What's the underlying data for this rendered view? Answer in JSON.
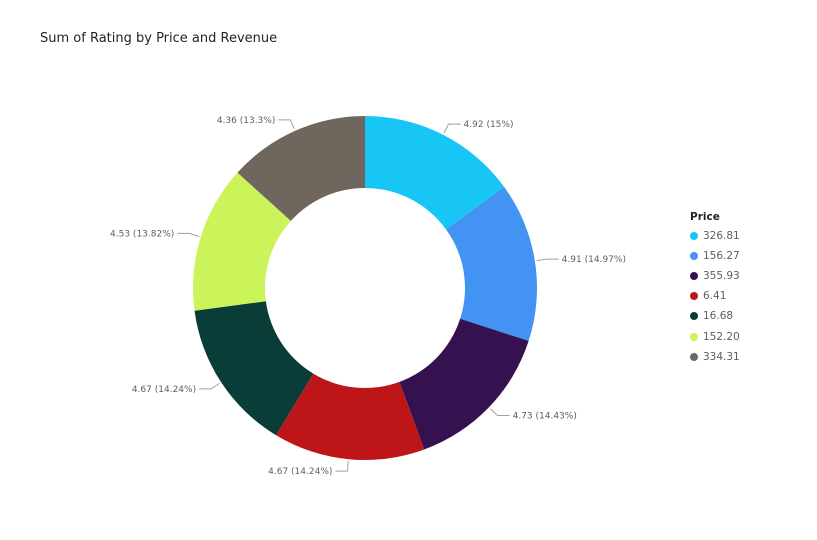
{
  "chart_data": {
    "type": "donut",
    "title": "Sum of Rating by Price and Revenue",
    "legend_title": "Price",
    "legend_position": "right",
    "slices": [
      {
        "category": "326.81",
        "value": 4.92,
        "label": "4.92 (15%)",
        "color": "#17c6f5"
      },
      {
        "category": "156.27",
        "value": 4.91,
        "label": "4.91 (14.97%)",
        "color": "#4393f3"
      },
      {
        "category": "355.93",
        "value": 4.73,
        "label": "4.73 (14.43%)",
        "color": "#35114f"
      },
      {
        "category": "6.41",
        "value": 4.67,
        "label": "4.67 (14.24%)",
        "color": "#be1519"
      },
      {
        "category": "16.68",
        "value": 4.67,
        "label": "4.67 (14.24%)",
        "color": "#0a3c38"
      },
      {
        "category": "152.20",
        "value": 4.53,
        "label": "4.53 (13.82%)",
        "color": "#caf459"
      },
      {
        "category": "334.31",
        "value": 4.36,
        "label": "4.36 (13.3%)",
        "color": "#6f665e"
      }
    ]
  }
}
